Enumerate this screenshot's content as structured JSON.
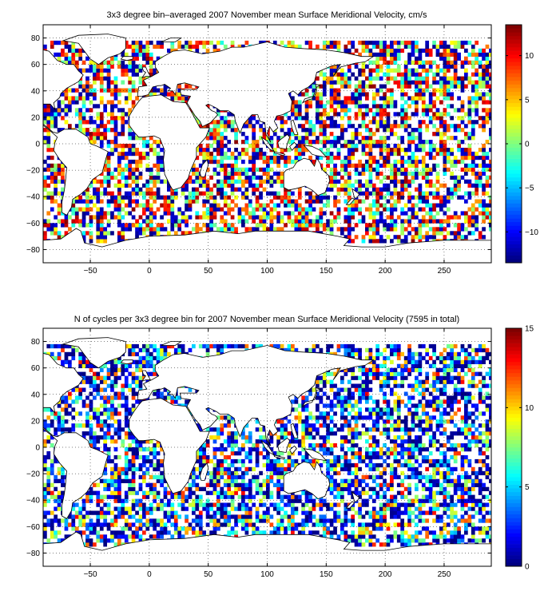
{
  "chart_data": [
    {
      "type": "heatmap",
      "title": "3x3 degree bin–averaged 2007 November mean Surface Meridional Velocity, cm/s",
      "xlabel": "",
      "ylabel": "",
      "xlim": [
        -90,
        290
      ],
      "ylim": [
        -90,
        90
      ],
      "x_ticks": [
        -50,
        0,
        50,
        100,
        150,
        200,
        250
      ],
      "y_ticks": [
        -80,
        -60,
        -40,
        -20,
        0,
        20,
        40,
        60,
        80
      ],
      "bin_size_deg": 3,
      "colorbar": {
        "range": [
          -13.5,
          13.5
        ],
        "ticks": [
          -10,
          -5,
          0,
          5,
          10
        ],
        "colormap": "jet"
      },
      "grid": "dotted",
      "coastlines": true,
      "values_range": [
        -13.5,
        13.5
      ],
      "seed": 17,
      "density": 0.62
    },
    {
      "type": "heatmap",
      "title": "N of cycles per 3x3 degree bin for 2007 November mean Surface Meridional Velocity (7595 in total)",
      "xlabel": "",
      "ylabel": "",
      "xlim": [
        -90,
        290
      ],
      "ylim": [
        -90,
        90
      ],
      "x_ticks": [
        -50,
        0,
        50,
        100,
        150,
        200,
        250
      ],
      "y_ticks": [
        -80,
        -60,
        -40,
        -20,
        0,
        20,
        40,
        60,
        80
      ],
      "bin_size_deg": 3,
      "colorbar": {
        "range": [
          0,
          15
        ],
        "ticks": [
          0,
          5,
          10,
          15
        ],
        "colormap": "jet"
      },
      "grid": "dotted",
      "coastlines": true,
      "total_cycles": 7595,
      "values_range": [
        0,
        15
      ],
      "seed": 17,
      "density": 0.62
    }
  ]
}
